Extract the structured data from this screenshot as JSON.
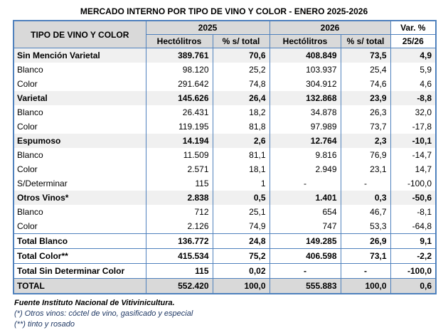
{
  "title": "MERCADO INTERNO POR TIPO DE VINO Y COLOR - ENERO 2025-2026",
  "colors": {
    "border_blue": "#4f81bd",
    "header_bg": "#d9d9d9",
    "group_row_bg": "#f0f0f0",
    "grand_total_bg": "#d9d9d9",
    "footnote_color": "#1f3864"
  },
  "table": {
    "header": {
      "tipo": "TIPO DE VINO Y COLOR",
      "y2025": "2025",
      "y2026": "2026",
      "var_pct": "Var. %",
      "var_sub": "25/26",
      "hectolitros": "Hectólitros",
      "pct_total": "% s/ total"
    },
    "rows": [
      {
        "label": "Sin Mención Varietal",
        "style": "group",
        "values": [
          "389.761",
          "70,6",
          "408.849",
          "73,5",
          "4,9"
        ]
      },
      {
        "label": "Blanco",
        "style": "detail",
        "values": [
          "98.120",
          "25,2",
          "103.937",
          "25,4",
          "5,9"
        ]
      },
      {
        "label": "Color",
        "style": "detail",
        "values": [
          "291.642",
          "74,8",
          "304.912",
          "74,6",
          "4,6"
        ]
      },
      {
        "label": "Varietal",
        "style": "group",
        "values": [
          "145.626",
          "26,4",
          "132.868",
          "23,9",
          "-8,8"
        ]
      },
      {
        "label": "Blanco",
        "style": "detail",
        "values": [
          "26.431",
          "18,2",
          "34.878",
          "26,3",
          "32,0"
        ]
      },
      {
        "label": "Color",
        "style": "detail",
        "values": [
          "119.195",
          "81,8",
          "97.989",
          "73,7",
          "-17,8"
        ]
      },
      {
        "label": "Espumoso",
        "style": "group",
        "values": [
          "14.194",
          "2,6",
          "12.764",
          "2,3",
          "-10,1"
        ]
      },
      {
        "label": "Blanco",
        "style": "detail",
        "values": [
          "11.509",
          "81,1",
          "9.816",
          "76,9",
          "-14,7"
        ]
      },
      {
        "label": "Color",
        "style": "detail",
        "values": [
          "2.571",
          "18,1",
          "2.949",
          "23,1",
          "14,7"
        ]
      },
      {
        "label": "S/Determinar",
        "style": "detail",
        "values": [
          "115",
          "1",
          "-",
          "-",
          "-100,0"
        ]
      },
      {
        "label": "Otros Vinos*",
        "style": "group",
        "values": [
          "2.838",
          "0,5",
          "1.401",
          "0,3",
          "-50,6"
        ]
      },
      {
        "label": "Blanco",
        "style": "detail",
        "values": [
          "712",
          "25,1",
          "654",
          "46,7",
          "-8,1"
        ]
      },
      {
        "label": "Color",
        "style": "detail",
        "values": [
          "2.126",
          "74,9",
          "747",
          "53,3",
          "-64,8"
        ]
      },
      {
        "label": "Total Blanco",
        "style": "total",
        "values": [
          "136.772",
          "24,8",
          "149.285",
          "26,9",
          "9,1"
        ]
      },
      {
        "label": "Total Color**",
        "style": "total",
        "values": [
          "415.534",
          "75,2",
          "406.598",
          "73,1",
          "-2,2"
        ]
      },
      {
        "label": "Total Sin Determinar Color",
        "style": "total",
        "values": [
          "115",
          "0,02",
          "-",
          "-",
          "-100,0"
        ]
      },
      {
        "label": "TOTAL",
        "style": "grand",
        "values": [
          "552.420",
          "100,0",
          "555.883",
          "100,0",
          "0,6"
        ]
      }
    ]
  },
  "footnotes": {
    "source": "Fuente Instituto Nacional de Vitivinicultura.",
    "note1": "(*) Otros vinos: cóctel de vino, gasificado y especial",
    "note2": "(**) tinto y rosado"
  }
}
